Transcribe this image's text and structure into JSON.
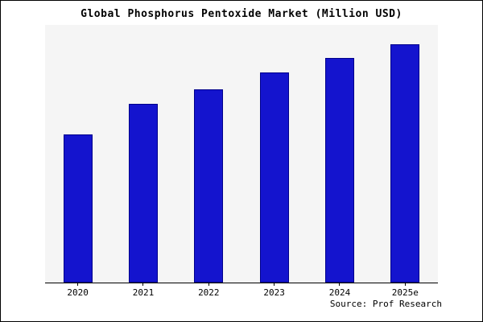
{
  "title": "Global Phosphorus Pentoxide Market (Million USD)",
  "source": "Source: Prof Research",
  "chart_data": {
    "type": "bar",
    "title": "Global Phosphorus Pentoxide Market (Million USD)",
    "categories": [
      "2020",
      "2021",
      "2022",
      "2023",
      "2024",
      "2025e"
    ],
    "values": [
      62,
      75,
      81,
      88,
      94,
      100
    ],
    "xlabel": "",
    "ylabel": "",
    "ylim": [
      0,
      108
    ],
    "grid": false,
    "legend": false,
    "bar_color": "#1414CE",
    "bar_edge_color": "#00008B",
    "plot_background": "#F5F5F5",
    "axis_color": "#000000",
    "source_note": "Source: Prof Research"
  }
}
